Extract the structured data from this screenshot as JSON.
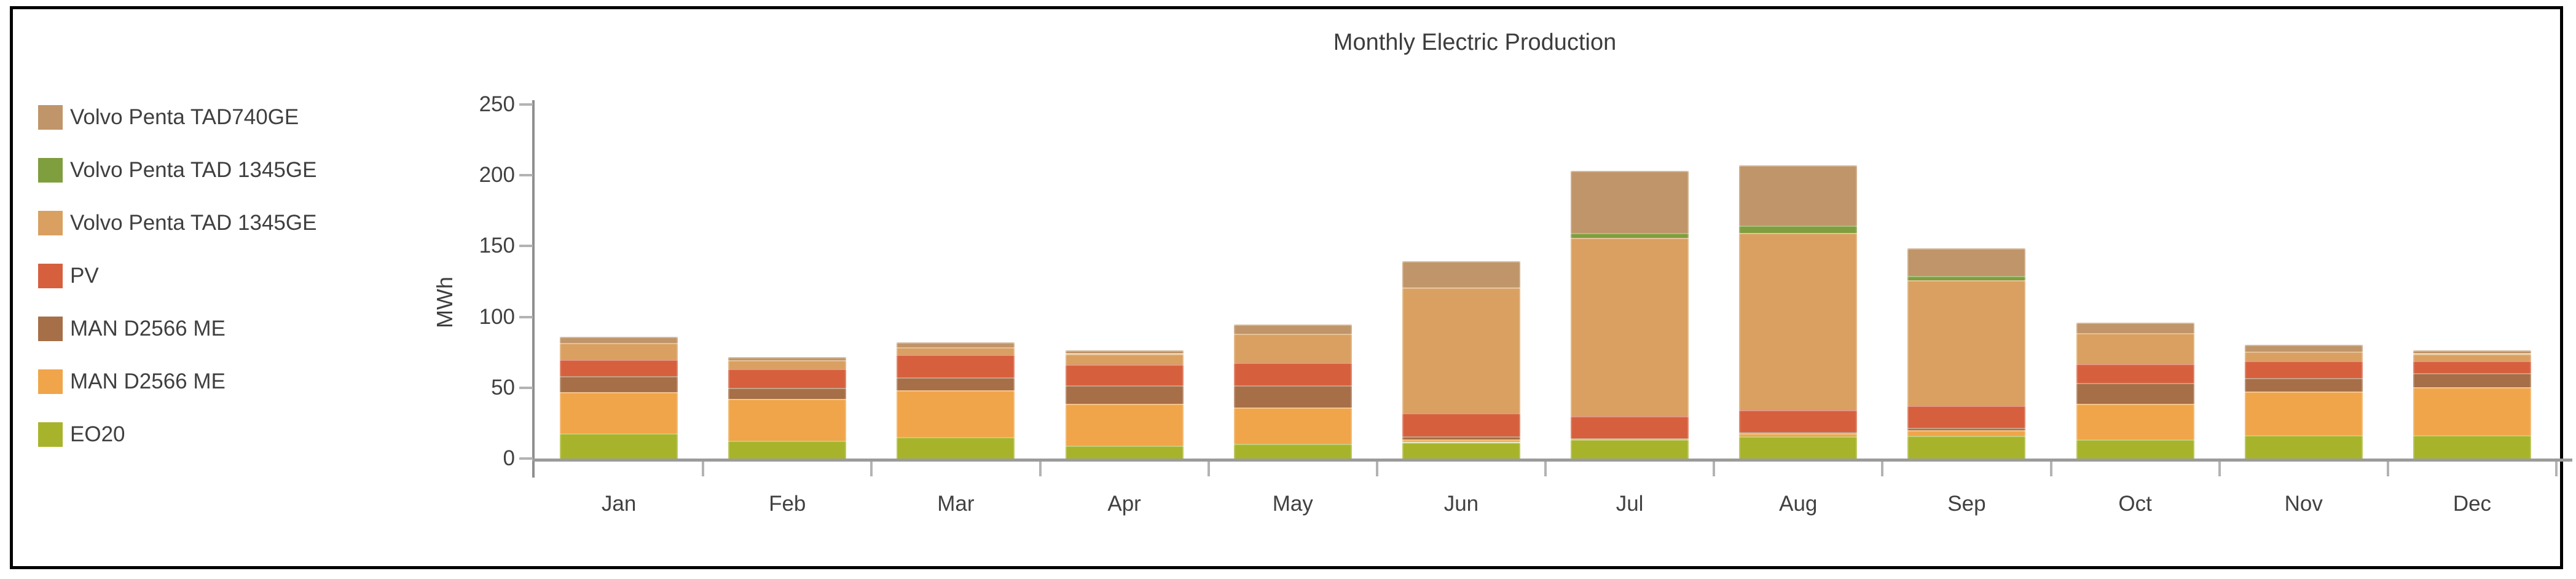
{
  "title": "Monthly Electric Production",
  "y_axis": {
    "label": "MWh",
    "ticks": [
      0,
      50,
      100,
      150,
      200,
      250
    ]
  },
  "legend": {
    "items_top_to_bottom": [
      {
        "label": "Volvo Penta TAD740GE",
        "color": "#bf9569"
      },
      {
        "label": "Volvo Penta TAD 1345GE",
        "color": "#7f9e3d"
      },
      {
        "label": "Volvo Penta TAD 1345GE",
        "color": "#d9a061"
      },
      {
        "label": "PV",
        "color": "#d6603e"
      },
      {
        "label": "MAN D2566 ME",
        "color": "#a66f48"
      },
      {
        "label": "MAN D2566 ME",
        "color": "#f0a54a"
      },
      {
        "label": "EO20",
        "color": "#a7b42b"
      }
    ]
  },
  "chart_data": {
    "type": "bar",
    "stacked": true,
    "title": "Monthly Electric Production",
    "xlabel": "",
    "ylabel": "MWh",
    "ylim": [
      0,
      250
    ],
    "yticks": [
      0,
      50,
      100,
      150,
      200,
      250
    ],
    "grid": false,
    "legend_position": "left",
    "categories": [
      "Jan",
      "Feb",
      "Mar",
      "Apr",
      "May",
      "Jun",
      "Jul",
      "Aug",
      "Sep",
      "Oct",
      "Nov",
      "Dec"
    ],
    "series_stack_bottom_to_top": [
      {
        "name": "EO20",
        "color": "#a7b42b",
        "values": [
          18,
          12.5,
          15,
          9,
          10.5,
          11.5,
          13.5,
          15.5,
          16,
          13.5,
          16.5,
          16.5
        ]
      },
      {
        "name": "MAN D2566 ME",
        "color": "#f0a54a",
        "values": [
          29,
          29.5,
          33,
          29.5,
          25.5,
          2,
          0.5,
          2.5,
          4,
          25,
          31,
          34
        ]
      },
      {
        "name": "MAN D2566 ME",
        "color": "#a66f48",
        "values": [
          11,
          8,
          9.5,
          13,
          15.5,
          2,
          0.5,
          0.5,
          1.5,
          15,
          9.5,
          10
        ]
      },
      {
        "name": "PV",
        "color": "#d6603e",
        "values": [
          12,
          13.5,
          16,
          15,
          16,
          16.5,
          15.5,
          16,
          16,
          13.5,
          12,
          8.5
        ]
      },
      {
        "name": "Volvo Penta TAD 1345GE",
        "color": "#d9a061",
        "values": [
          11.5,
          6,
          5,
          7.5,
          20.5,
          88.5,
          126,
          125,
          88.5,
          21.5,
          6.5,
          5
        ]
      },
      {
        "name": "Volvo Penta TAD 1345GE",
        "color": "#7f9e3d",
        "values": [
          0,
          0,
          0,
          0,
          0,
          0.5,
          3.5,
          5,
          3,
          0,
          0,
          0
        ]
      },
      {
        "name": "Volvo Penta TAD740GE",
        "color": "#bf9569",
        "values": [
          4.5,
          2,
          3.5,
          2.5,
          6.5,
          18.5,
          43.5,
          42.5,
          19.5,
          7.5,
          5,
          2.5
        ]
      }
    ],
    "monthly_totals": [
      86,
      71.5,
      82,
      76.5,
      94.5,
      139.5,
      203,
      207,
      148.5,
      96,
      80.5,
      76.5
    ]
  }
}
